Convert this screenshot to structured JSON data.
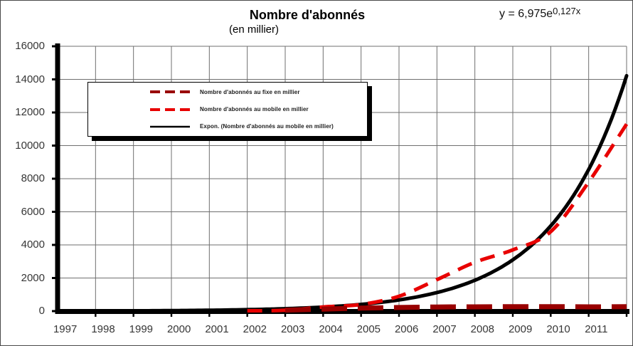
{
  "title": {
    "line1": "Nombre d'abonnés",
    "line2": "(en millier)"
  },
  "equation": {
    "base": "y = 6,975e",
    "exponent": "0,127x"
  },
  "legend": {
    "items": [
      {
        "label": "Nombre d'abonnés au fixe en millier",
        "color": "#990000",
        "style": "dashed"
      },
      {
        "label": "Nombre d'abonnés au mobile en millier",
        "color": "#e80000",
        "style": "dashed"
      },
      {
        "label": "Expon. (Nombre d'abonnés au mobile en millier)",
        "color": "#000000",
        "style": "solid"
      }
    ]
  },
  "colors": {
    "fixe": "#990000",
    "mobile": "#e80000",
    "trendline": "#000000",
    "gridline": "#6f6f6f",
    "axis": "#000000",
    "tick_label": "#363636"
  },
  "chart_data": {
    "type": "line",
    "title": "Nombre d'abonnés",
    "subtitle": "(en millier)",
    "x_categories": [
      "1997",
      "1998",
      "1999",
      "2000",
      "2001",
      "2002",
      "2003",
      "2004",
      "2005",
      "2006",
      "2007",
      "2008",
      "2009",
      "2010",
      "2011"
    ],
    "y_ticks": [
      16000,
      14000,
      12000,
      10000,
      8000,
      6000,
      4000,
      2000,
      0
    ],
    "ylim": [
      0,
      16000
    ],
    "grid": true,
    "legend_position": "top-left-overlay",
    "series": [
      {
        "name": "Nombre d'abonnés au fixe en millier",
        "color": "#990000",
        "dash": true,
        "values": [
          0,
          0,
          5,
          10,
          30,
          60,
          120,
          180,
          220,
          250,
          260,
          270,
          270,
          260,
          265
        ],
        "draw_from_index": 5
      },
      {
        "name": "Nombre d'abonnés au mobile en millier",
        "color": "#e80000",
        "dash": true,
        "values": [
          0,
          2,
          5,
          10,
          20,
          50,
          250,
          400,
          900,
          1900,
          2950,
          3700,
          4800,
          7800,
          11300
        ],
        "draw_from_index": 4
      }
    ],
    "trendline": {
      "name": "Expon. (Nombre d'abonnés au mobile en millier)",
      "color": "#000000",
      "equation_text": "y = 6,975e^(0,127x)",
      "a": 6.975,
      "b_per_x": 0.127,
      "x_units_per_year": 4,
      "values_at_year_end": [
        12,
        19,
        32,
        53,
        89,
        147,
        245,
        407,
        676,
        1124,
        1868,
        3104,
        5159,
        8574,
        14249
      ]
    }
  }
}
